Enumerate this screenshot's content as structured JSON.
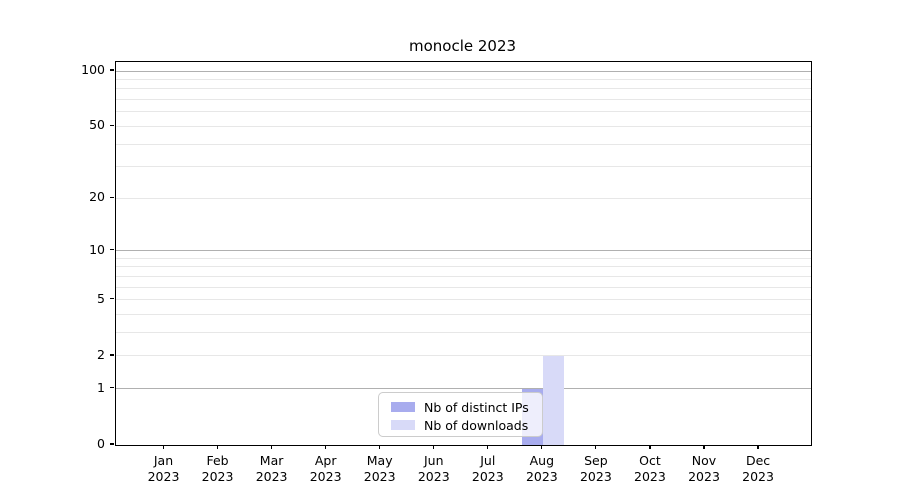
{
  "figure": {
    "title": "monocle 2023"
  },
  "chart_data": {
    "type": "bar",
    "title": "monocle 2023",
    "categories": [
      "Jan 2023",
      "Feb 2023",
      "Mar 2023",
      "Apr 2023",
      "May 2023",
      "Jun 2023",
      "Jul 2023",
      "Aug 2023",
      "Sep 2023",
      "Oct 2023",
      "Nov 2023",
      "Dec 2023"
    ],
    "series": [
      {
        "name": "Nb of distinct IPs",
        "color": "#a8acee",
        "values": [
          0,
          0,
          0,
          0,
          0,
          0,
          0,
          1,
          0,
          0,
          0,
          0
        ]
      },
      {
        "name": "Nb of downloads",
        "color": "#d8daf8",
        "values": [
          0,
          0,
          0,
          0,
          0,
          0,
          0,
          2,
          0,
          0,
          0,
          0
        ]
      }
    ],
    "xlabel": "",
    "ylabel": "",
    "yscale": "log1p",
    "ylim": [
      0,
      112
    ],
    "y_ticks": [
      0,
      1,
      2,
      5,
      10,
      20,
      50,
      100
    ],
    "y_minor_gridlines": [
      3,
      4,
      6,
      7,
      8,
      9,
      30,
      40,
      60,
      70,
      80,
      90
    ],
    "grid": true,
    "grid_decade_color": "#b0b0b0",
    "grid_minor_color": "#e7e7e7",
    "legend_position": "lower center"
  }
}
